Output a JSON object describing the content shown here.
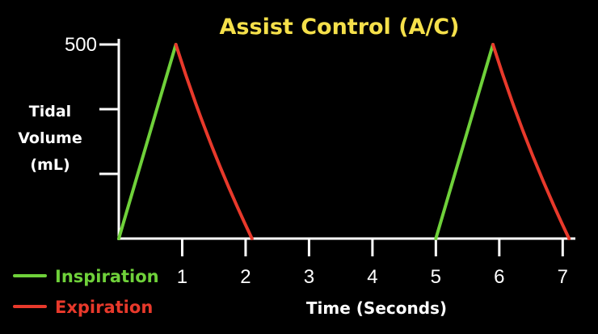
{
  "chart_data": {
    "type": "line",
    "title": "Assist Control (A/C)",
    "ylabel": [
      "Tidal",
      "Volume",
      "(mL)"
    ],
    "xlabel": "Time (Seconds)",
    "ytick_labels": [
      "500"
    ],
    "y_ticks": [
      500
    ],
    "y_unlabeled_ticks": [
      166.7,
      333.3
    ],
    "x_ticks": [
      1,
      2,
      3,
      4,
      5,
      6,
      7
    ],
    "xlim": [
      0,
      7.2
    ],
    "ylim": [
      0,
      500
    ],
    "series": [
      {
        "name": "Inspiration",
        "color": "#6fd13a",
        "segments": [
          [
            [
              0,
              0
            ],
            [
              0.9,
              500
            ]
          ],
          [
            [
              5,
              0
            ],
            [
              5.9,
              500
            ]
          ]
        ]
      },
      {
        "name": "Expiration",
        "color": "#e8392b",
        "segments": [
          [
            [
              0.9,
              500
            ],
            [
              1.4,
              240
            ],
            [
              2.1,
              0
            ]
          ],
          [
            [
              5.9,
              500
            ],
            [
              6.4,
              240
            ],
            [
              7.1,
              0
            ]
          ]
        ]
      }
    ],
    "legend": {
      "placement": "bottom-left",
      "items": [
        {
          "label": "Inspiration",
          "color": "#6fd13a"
        },
        {
          "label": "Expiration",
          "color": "#e8392b"
        }
      ]
    },
    "colors": {
      "title": "#f5e04a",
      "axis": "#ffffff",
      "background": "#000000"
    },
    "grid": false
  }
}
